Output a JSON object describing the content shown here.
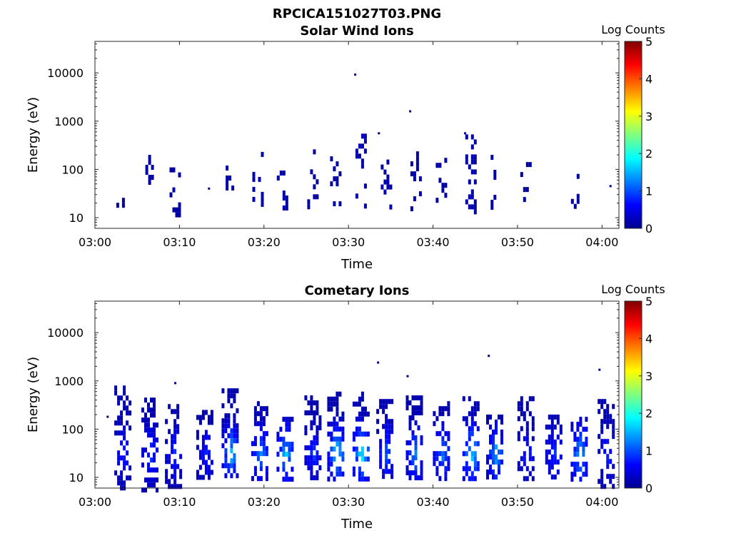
{
  "figure": {
    "title": "RPCICA151027T03.PNG"
  },
  "chart_data": [
    {
      "type": "heatmap",
      "title": "Solar Wind Ions",
      "xlabel": "Time",
      "ylabel": "Energy (eV)",
      "x_ticks": [
        "03:00",
        "03:10",
        "03:20",
        "03:30",
        "03:40",
        "03:50",
        "04:00"
      ],
      "y_ticks": [
        "10",
        "100",
        "1000",
        "10000"
      ],
      "y_scale": "log",
      "ylim": [
        6,
        45000
      ],
      "xlim_minutes": [
        0,
        62
      ],
      "colorbar": {
        "label": "Log Counts",
        "ticks": [
          "0",
          "1",
          "2",
          "3",
          "4",
          "5"
        ],
        "range": [
          0,
          5
        ],
        "colormap": "jet"
      },
      "bursts": [
        {
          "t": 3.2,
          "emin": 12,
          "emax": 85,
          "peak": 0.1
        },
        {
          "t": 6.3,
          "emin": 22,
          "emax": 200,
          "peak": 0.1
        },
        {
          "t": 9.5,
          "emin": 12,
          "emax": 110,
          "peak": 0.1
        },
        {
          "t": 15.8,
          "emin": 17,
          "emax": 120,
          "peak": 0.3
        },
        {
          "t": 19.3,
          "emin": 17,
          "emax": 230,
          "peak": 0.3
        },
        {
          "t": 22.2,
          "emin": 17,
          "emax": 120,
          "peak": 0.3
        },
        {
          "t": 25.8,
          "emin": 12,
          "emax": 260,
          "peak": 0.3
        },
        {
          "t": 28.5,
          "emin": 17,
          "emax": 300,
          "peak": 0.3
        },
        {
          "t": 31.5,
          "emin": 17,
          "emax": 550,
          "peak": 0.4
        },
        {
          "t": 34.5,
          "emin": 17,
          "emax": 160,
          "peak": 0.3
        },
        {
          "t": 38.0,
          "emin": 17,
          "emax": 300,
          "peak": 0.3
        },
        {
          "t": 41.0,
          "emin": 12,
          "emax": 280,
          "peak": 0.3
        },
        {
          "t": 44.5,
          "emin": 12,
          "emax": 530,
          "peak": 0.3
        },
        {
          "t": 47.5,
          "emin": 17,
          "emax": 200,
          "peak": 0.3
        },
        {
          "t": 51.0,
          "emin": 17,
          "emax": 180,
          "peak": 0.2
        },
        {
          "t": 57.0,
          "emin": 17,
          "emax": 130,
          "peak": 0.2
        }
      ],
      "isolated_points": [
        {
          "t": 30.8,
          "e": 9200
        },
        {
          "t": 37.3,
          "e": 1600
        },
        {
          "t": 33.6,
          "e": 560
        },
        {
          "t": 43.8,
          "e": 560
        },
        {
          "t": 61.0,
          "e": 45
        },
        {
          "t": 13.5,
          "e": 40
        }
      ]
    },
    {
      "type": "heatmap",
      "title": "Cometary Ions",
      "xlabel": "Time",
      "ylabel": "Energy (eV)",
      "x_ticks": [
        "03:00",
        "03:10",
        "03:20",
        "03:30",
        "03:40",
        "03:50",
        "04:00"
      ],
      "y_ticks": [
        "10",
        "100",
        "1000",
        "10000"
      ],
      "y_scale": "log",
      "ylim": [
        6,
        45000
      ],
      "xlim_minutes": [
        0,
        62
      ],
      "colorbar": {
        "label": "Log Counts",
        "ticks": [
          "0",
          "1",
          "2",
          "3",
          "4",
          "5"
        ],
        "range": [
          0,
          5
        ],
        "colormap": "jet"
      },
      "bursts": [
        {
          "t": 3.3,
          "emin": 6,
          "emax": 800,
          "peak": 0.9
        },
        {
          "t": 6.5,
          "emin": 6,
          "emax": 450,
          "peak": 1.0
        },
        {
          "t": 9.3,
          "emin": 6,
          "emax": 330,
          "peak": 0.9
        },
        {
          "t": 13.0,
          "emin": 10,
          "emax": 250,
          "peak": 0.9
        },
        {
          "t": 16.0,
          "emin": 10,
          "emax": 700,
          "peak": 1.7
        },
        {
          "t": 19.5,
          "emin": 10,
          "emax": 380,
          "peak": 1.3
        },
        {
          "t": 22.5,
          "emin": 10,
          "emax": 180,
          "peak": 1.7
        },
        {
          "t": 25.8,
          "emin": 10,
          "emax": 500,
          "peak": 1.0
        },
        {
          "t": 28.5,
          "emin": 10,
          "emax": 600,
          "peak": 1.9
        },
        {
          "t": 31.5,
          "emin": 10,
          "emax": 600,
          "peak": 2.0
        },
        {
          "t": 34.3,
          "emin": 10,
          "emax": 420,
          "peak": 1.2
        },
        {
          "t": 37.8,
          "emin": 10,
          "emax": 500,
          "peak": 1.5
        },
        {
          "t": 41.0,
          "emin": 10,
          "emax": 380,
          "peak": 1.4
        },
        {
          "t": 44.5,
          "emin": 10,
          "emax": 480,
          "peak": 1.8
        },
        {
          "t": 47.3,
          "emin": 10,
          "emax": 200,
          "peak": 1.7
        },
        {
          "t": 51.0,
          "emin": 10,
          "emax": 480,
          "peak": 0.9
        },
        {
          "t": 54.3,
          "emin": 10,
          "emax": 200,
          "peak": 0.9
        },
        {
          "t": 57.3,
          "emin": 10,
          "emax": 180,
          "peak": 1.7
        },
        {
          "t": 60.5,
          "emin": 6,
          "emax": 420,
          "peak": 0.9
        }
      ],
      "isolated_points": [
        {
          "t": 33.5,
          "e": 2400
        },
        {
          "t": 37.0,
          "e": 1250
        },
        {
          "t": 46.6,
          "e": 3300
        },
        {
          "t": 59.7,
          "e": 1700
        },
        {
          "t": 9.5,
          "e": 900
        },
        {
          "t": 1.5,
          "e": 180
        }
      ]
    }
  ]
}
